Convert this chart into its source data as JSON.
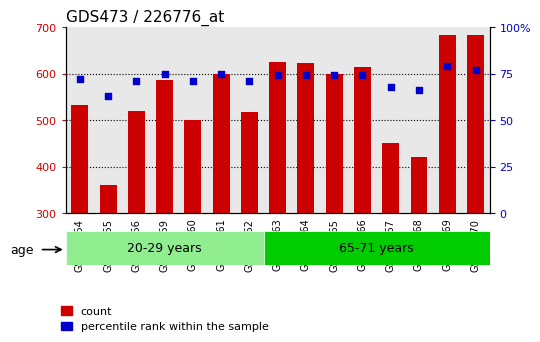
{
  "title": "GDS473 / 226776_at",
  "samples": [
    "GSM10354",
    "GSM10355",
    "GSM10356",
    "GSM10359",
    "GSM10360",
    "GSM10361",
    "GSM10362",
    "GSM10363",
    "GSM10364",
    "GSM10365",
    "GSM10366",
    "GSM10367",
    "GSM10368",
    "GSM10369",
    "GSM10370"
  ],
  "counts": [
    533,
    360,
    520,
    586,
    500,
    600,
    518,
    624,
    622,
    600,
    614,
    452,
    422,
    682,
    682
  ],
  "percentile_ranks": [
    72,
    63,
    71,
    75,
    71,
    75,
    71,
    74,
    74,
    74,
    74,
    68,
    66,
    79,
    77
  ],
  "bar_bottom": 300,
  "ylim_left": [
    300,
    700
  ],
  "ylim_right": [
    0,
    100
  ],
  "yticks_left": [
    300,
    400,
    500,
    600,
    700
  ],
  "yticks_right": [
    0,
    25,
    50,
    75,
    100
  ],
  "ytick_right_labels": [
    "0",
    "25",
    "50",
    "75",
    "100%"
  ],
  "bar_color": "#cc0000",
  "dot_color": "#0000cc",
  "group1_label": "20-29 years",
  "group2_label": "65-71 years",
  "group1_indices": [
    0,
    1,
    2,
    3,
    4,
    5,
    6
  ],
  "group2_indices": [
    7,
    8,
    9,
    10,
    11,
    12,
    13,
    14
  ],
  "group1_bg": "#90ee90",
  "group2_bg": "#00cc00",
  "age_label": "age",
  "legend_count_label": "count",
  "legend_pct_label": "percentile rank within the sample",
  "axis_bg": "#e8e8e8",
  "dotted_line_color": "#000000",
  "title_fontsize": 11,
  "tick_fontsize": 8,
  "bar_width": 0.6
}
